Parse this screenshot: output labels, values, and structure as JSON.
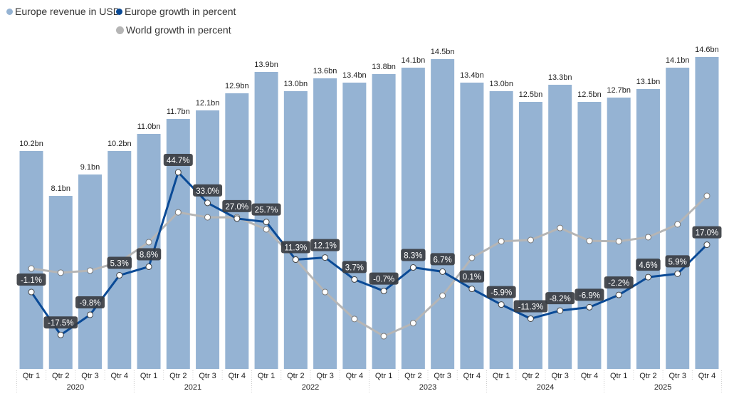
{
  "chart_data": {
    "type": "bar+line",
    "legend_position": "top-left",
    "grid": false,
    "colors": {
      "revenue": "#95b3d3",
      "europe_growth": "#0a4a96",
      "world_growth": "#b5b5b5",
      "label_bg": "#3a3d42"
    },
    "years": [
      "2020",
      "2021",
      "2022",
      "2023",
      "2024",
      "2025"
    ],
    "quarters": [
      "Qtr 1",
      "Qtr 2",
      "Qtr 3",
      "Qtr 4"
    ],
    "series": [
      {
        "name": "Europe revenue in USD",
        "type": "bar",
        "unit": "bn",
        "values": [
          10.2,
          8.1,
          9.1,
          10.2,
          11.0,
          11.7,
          12.1,
          12.9,
          13.9,
          13.0,
          13.6,
          13.4,
          13.8,
          14.1,
          14.5,
          13.4,
          13.0,
          12.5,
          13.3,
          12.5,
          12.7,
          13.1,
          14.1,
          14.6
        ],
        "labels": [
          "10.2bn",
          "8.1bn",
          "9.1bn",
          "10.2bn",
          "11.0bn",
          "11.7bn",
          "12.1bn",
          "12.9bn",
          "13.9bn",
          "13.0bn",
          "13.6bn",
          "13.4bn",
          "13.8bn",
          "14.1bn",
          "14.5bn",
          "13.4bn",
          "13.0bn",
          "12.5bn",
          "13.3bn",
          "12.5bn",
          "12.7bn",
          "13.1bn",
          "14.1bn",
          "14.6bn"
        ]
      },
      {
        "name": "Europe growth in percent",
        "type": "line",
        "unit": "%",
        "values": [
          -1.1,
          -17.5,
          -9.8,
          5.3,
          8.6,
          44.7,
          33.0,
          27.0,
          25.7,
          11.3,
          12.1,
          3.7,
          -0.7,
          8.3,
          6.7,
          0.1,
          -5.9,
          -11.3,
          -8.2,
          -6.9,
          -2.2,
          4.6,
          5.9,
          17.0
        ],
        "labels": [
          "-1.1%",
          "-17.5%",
          "-9.8%",
          "5.3%",
          "8.6%",
          "44.7%",
          "33.0%",
          "27.0%",
          "25.7%",
          "11.3%",
          "12.1%",
          "3.7%",
          "-0.7%",
          "8.3%",
          "6.7%",
          "0.1%",
          "-5.9%",
          "-11.3%",
          "-8.2%",
          "-6.9%",
          "-2.2%",
          "4.6%",
          "5.9%",
          "17.0%"
        ]
      },
      {
        "name": "World growth in percent",
        "type": "line",
        "unit": "%",
        "values": [
          7.9,
          6.3,
          7.1,
          10.4,
          18.0,
          29.4,
          27.5,
          27.5,
          22.9,
          11.4,
          -1.1,
          -11.4,
          -18.0,
          -13.0,
          -2.5,
          12.0,
          18.3,
          18.8,
          23.4,
          18.5,
          18.3,
          19.9,
          24.8,
          35.7
        ]
      }
    ],
    "bar_axis_range": [
      0,
      16
    ],
    "line_axis_range": [
      -31,
      110
    ]
  }
}
